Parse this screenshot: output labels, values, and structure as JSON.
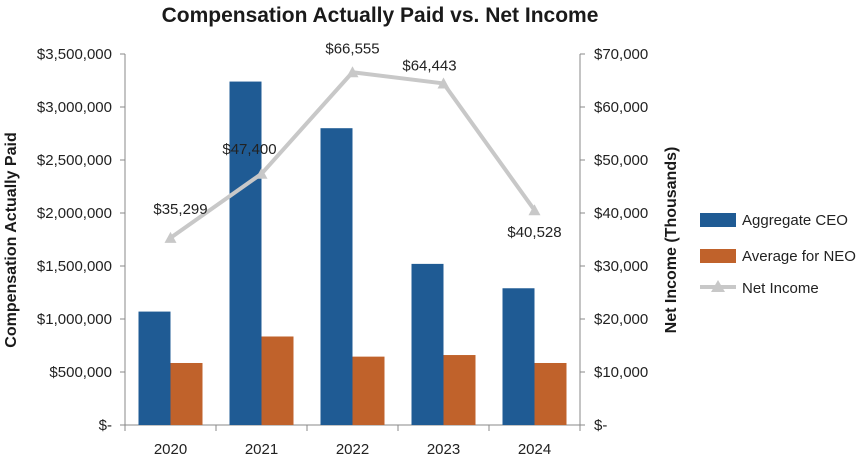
{
  "chart_data": {
    "type": "bar+line",
    "title": "Compensation Actually Paid vs. Net Income",
    "categories": [
      "2020",
      "2021",
      "2022",
      "2023",
      "2024"
    ],
    "series": [
      {
        "name": "Aggregate CEO",
        "type": "bar",
        "axis": "left",
        "color": "#1f5b94",
        "values": [
          1070000,
          3240000,
          2800000,
          1520000,
          1290000
        ]
      },
      {
        "name": "Average for NEO",
        "type": "bar",
        "axis": "left",
        "color": "#c0622b",
        "values": [
          585000,
          835000,
          645000,
          660000,
          585000
        ]
      },
      {
        "name": "Net Income",
        "type": "line",
        "axis": "right",
        "color": "#c8c8c8",
        "values": [
          35299,
          47400,
          66555,
          64443,
          40528
        ],
        "labels": [
          "$35,299",
          "$47,400",
          "$66,555",
          "$64,443",
          "$40,528"
        ]
      }
    ],
    "ylabel_left": "Compensation Actually Paid",
    "ylabel_right": "Net Income (Thousands)",
    "ylim_left": [
      0,
      3500000
    ],
    "ylim_right": [
      0,
      70000
    ],
    "yticks_left": [
      "$-",
      "$500,000",
      "$1,000,000",
      "$1,500,000",
      "$2,000,000",
      "$2,500,000",
      "$3,000,000",
      "$3,500,000"
    ],
    "yticks_right": [
      "$-",
      "$10,000",
      "$20,000",
      "$30,000",
      "$40,000",
      "$50,000",
      "$60,000",
      "$70,000"
    ],
    "legend": [
      "Aggregate CEO",
      "Average for NEO",
      "Net Income"
    ],
    "legend_position": "right",
    "grid": false
  }
}
